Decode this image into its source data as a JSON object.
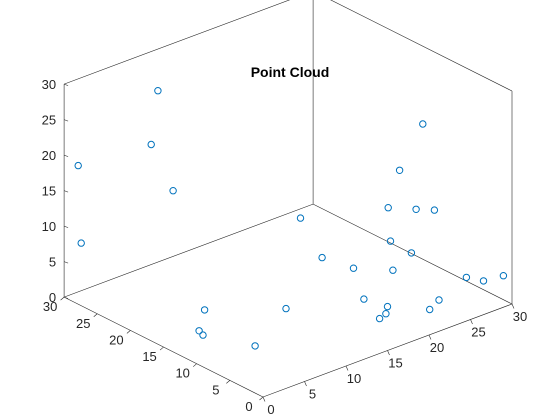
{
  "chart_data": {
    "type": "scatter",
    "title": "Point Cloud",
    "xlabel": "",
    "ylabel": "",
    "zlabel": "",
    "xlim": [
      0,
      30
    ],
    "ylim": [
      0,
      30
    ],
    "zlim": [
      0,
      30
    ],
    "x_ticks": [
      "0",
      "5",
      "10",
      "15",
      "20",
      "25",
      "30"
    ],
    "y_ticks": [
      "0",
      "5",
      "10",
      "15",
      "20",
      "25",
      "30"
    ],
    "z_ticks": [
      "0",
      "5",
      "10",
      "15",
      "20",
      "25",
      "30"
    ],
    "grid": false,
    "box": true,
    "marker": "circle-open",
    "color": "#0072BD",
    "series": [
      {
        "points": [
          {
            "x": 0.5,
            "y": 28.5,
            "z": 19
          },
          {
            "x": 0.3,
            "y": 27.8,
            "z": 8.5
          },
          {
            "x": 8.5,
            "y": 26.5,
            "z": 27
          },
          {
            "x": 6.5,
            "y": 25.0,
            "z": 21
          },
          {
            "x": 8.5,
            "y": 24.2,
            "z": 14
          },
          {
            "x": 5.5,
            "y": 15.7,
            "z": 2.5
          },
          {
            "x": 4.2,
            "y": 14.9,
            "z": 0.5
          },
          {
            "x": 3.4,
            "y": 13.3,
            "z": 1.0
          },
          {
            "x": 6.0,
            "y": 8.7,
            "z": 0.5
          },
          {
            "x": 11.8,
            "y": 11.3,
            "z": 2.0
          },
          {
            "x": 17.1,
            "y": 12.5,
            "z": 6.3
          },
          {
            "x": 24.6,
            "y": 10.2,
            "z": 16.4
          },
          {
            "x": 21.8,
            "y": 8.4,
            "z": 13.2
          },
          {
            "x": 27.4,
            "y": 10.2,
            "z": 21.7
          },
          {
            "x": 23.8,
            "y": 6.7,
            "z": 12.9
          },
          {
            "x": 20.0,
            "y": 5.8,
            "z": 10.5
          },
          {
            "x": 27.2,
            "y": 8.2,
            "z": 10.6
          },
          {
            "x": 20.6,
            "y": 3.4,
            "z": 9.7
          },
          {
            "x": 19.0,
            "y": 4.2,
            "z": 7.6
          },
          {
            "x": 18.6,
            "y": 4.5,
            "z": 2.5
          },
          {
            "x": 18.0,
            "y": 4.0,
            "z": 2.0
          },
          {
            "x": 16.6,
            "y": 3.2,
            "z": 2.3
          },
          {
            "x": 21.6,
            "y": 1.9,
            "z": 2.0
          },
          {
            "x": 26.5,
            "y": 2.5,
            "z": 4.1
          },
          {
            "x": 27.2,
            "y": 0.8,
            "z": 4.1
          },
          {
            "x": 21.2,
            "y": 0.0,
            "z": 4.4
          },
          {
            "x": 14.5,
            "y": 4.5,
            "z": 9.7
          },
          {
            "x": 13.6,
            "y": 1.8,
            "z": 7.0
          },
          {
            "x": 29.2,
            "y": 0.3,
            "z": 4.2
          },
          {
            "x": 14.5,
            "y": 12.5,
            "z": 13.0
          }
        ]
      }
    ]
  }
}
